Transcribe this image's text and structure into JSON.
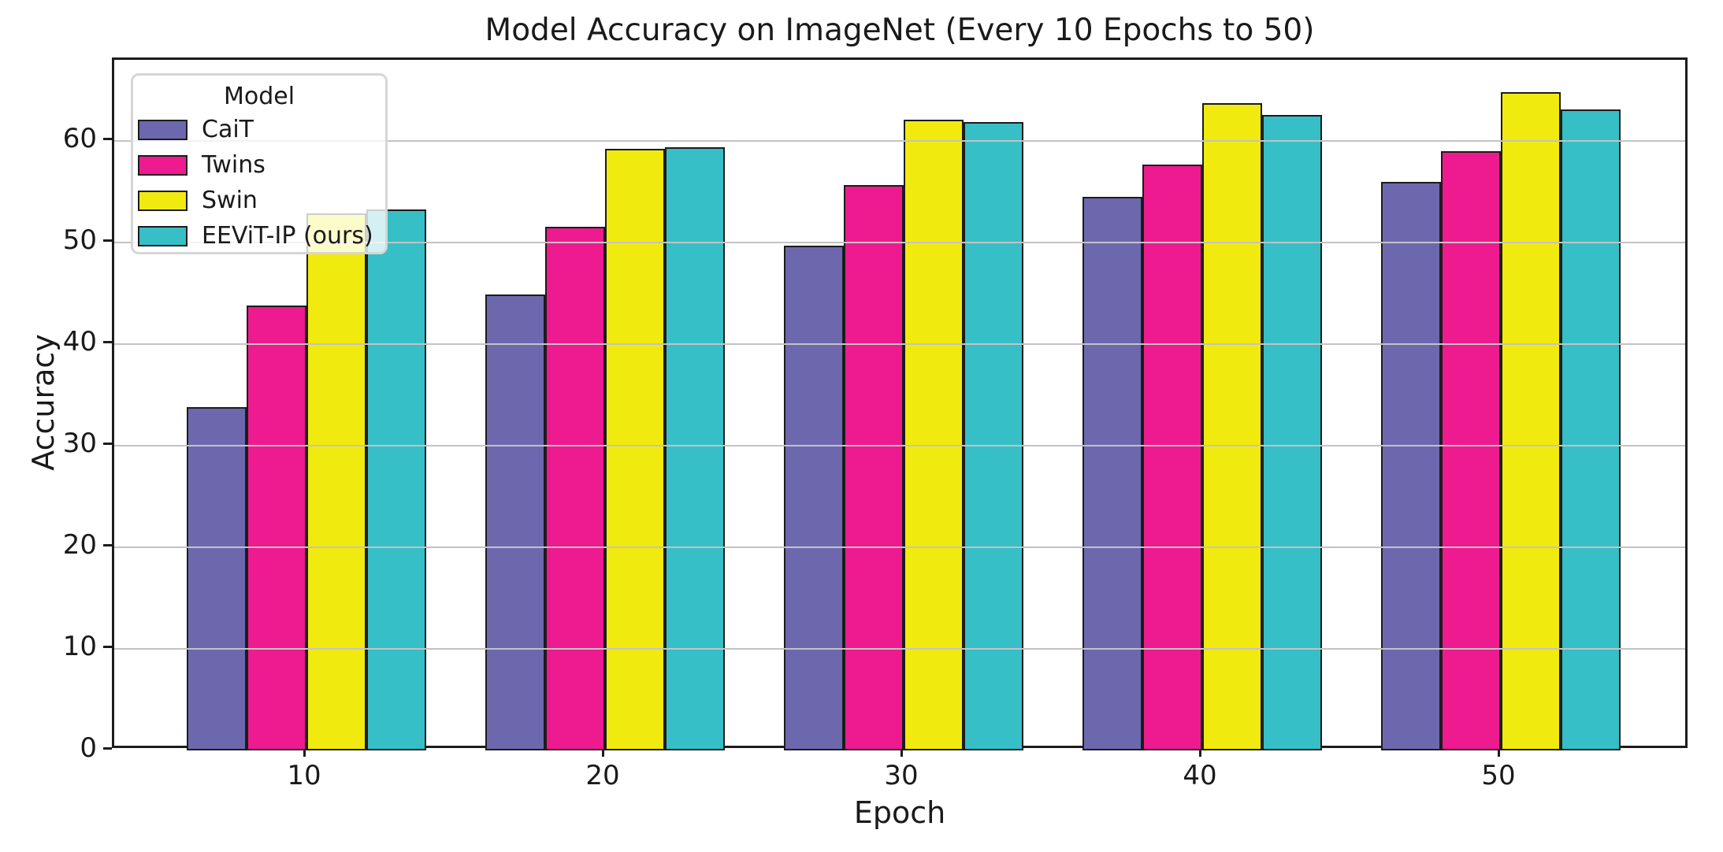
{
  "chart_data": {
    "type": "bar",
    "title": "Model Accuracy on ImageNet (Every 10 Epochs to 50)",
    "xlabel": "Epoch",
    "ylabel": "Accuracy",
    "categories": [
      "10",
      "20",
      "30",
      "40",
      "50"
    ],
    "series": [
      {
        "name": "CaiT",
        "color": "#6d68ae",
        "values": [
          33.8,
          44.9,
          49.7,
          54.5,
          56.0
        ]
      },
      {
        "name": "Twins",
        "color": "#ed1b8f",
        "values": [
          43.8,
          51.6,
          55.7,
          57.7,
          59.0
        ]
      },
      {
        "name": "Swin",
        "color": "#f1ea0e",
        "values": [
          52.9,
          59.2,
          62.1,
          63.7,
          64.8
        ]
      },
      {
        "name": "EEViT-IP (ours)",
        "color": "#36bfc6",
        "values": [
          53.3,
          59.4,
          61.9,
          62.6,
          63.1
        ]
      }
    ],
    "ylim": [
      0,
      68
    ],
    "yticks": [
      0,
      10,
      20,
      30,
      40,
      50,
      60
    ],
    "ytick_labels": [
      "0",
      "10",
      "20",
      "30",
      "40",
      "50",
      "60"
    ],
    "grid": "horizontal",
    "grid_color": "#c3c3c3",
    "bar_edge_color": "#1c1c1c",
    "legend": {
      "title": "Model",
      "position": "upper-left"
    }
  }
}
